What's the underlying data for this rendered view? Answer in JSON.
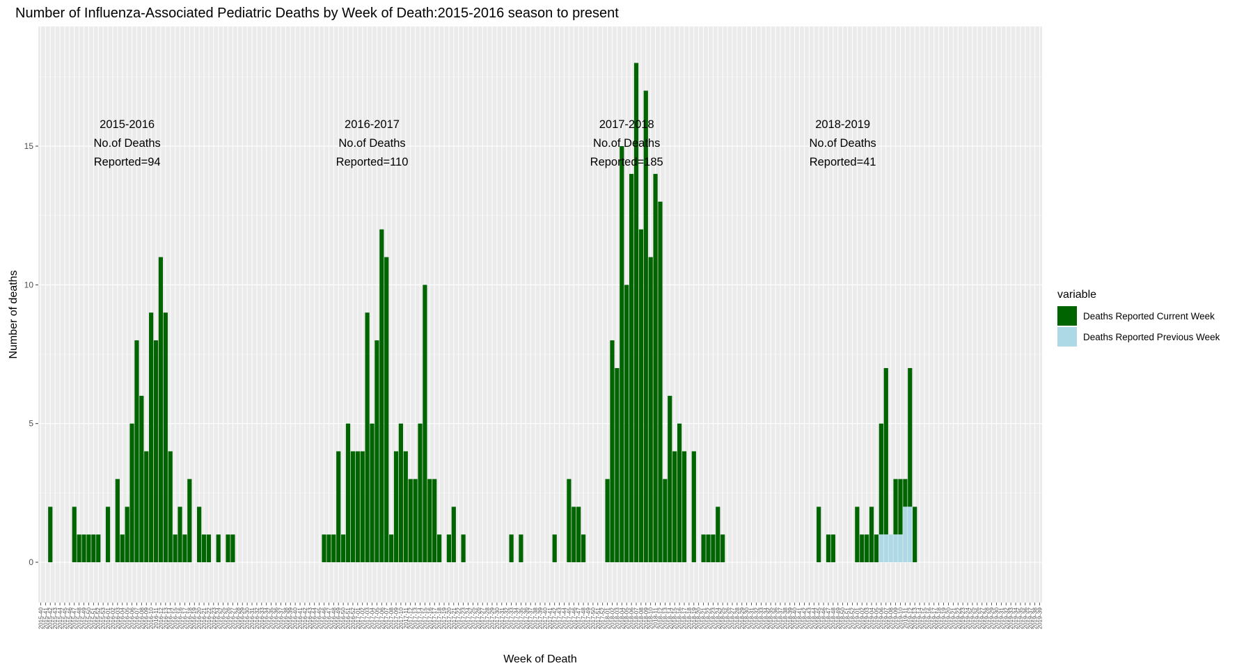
{
  "chart_data": {
    "type": "bar",
    "title": "Number of Influenza-Associated Pediatric Deaths by Week of Death:2015-2016 season to present",
    "xlabel": "Week of Death",
    "ylabel": "Number of deaths",
    "ylim": [
      0,
      18.9
    ],
    "yticks": [
      0,
      5,
      10,
      15
    ],
    "stacked": true,
    "grid": true,
    "legend": {
      "title": "variable",
      "position": "right"
    },
    "series": [
      {
        "name": "Deaths Reported Current Week",
        "color": "#006400"
      },
      {
        "name": "Deaths Reported Previous Week",
        "color": "#add8e6"
      }
    ],
    "categories": [
      "2015-40",
      "2015-41",
      "2015-42",
      "2015-43",
      "2015-44",
      "2015-45",
      "2015-46",
      "2015-47",
      "2015-48",
      "2015-49",
      "2015-50",
      "2015-51",
      "2015-52",
      "2015-53",
      "2016-01",
      "2016-02",
      "2016-03",
      "2016-04",
      "2016-05",
      "2016-06",
      "2016-07",
      "2016-08",
      "2016-09",
      "2016-10",
      "2016-11",
      "2016-12",
      "2016-13",
      "2016-14",
      "2016-15",
      "2016-16",
      "2016-17",
      "2016-18",
      "2016-19",
      "2016-20",
      "2016-21",
      "2016-22",
      "2016-23",
      "2016-24",
      "2016-25",
      "2016-26",
      "2016-27",
      "2016-28",
      "2016-29",
      "2016-30",
      "2016-31",
      "2016-32",
      "2016-33",
      "2016-34",
      "2016-35",
      "2016-36",
      "2016-37",
      "2016-38",
      "2016-39",
      "2016-40",
      "2016-41",
      "2016-42",
      "2016-43",
      "2016-44",
      "2016-45",
      "2016-46",
      "2016-47",
      "2016-48",
      "2016-49",
      "2016-50",
      "2016-51",
      "2016-52",
      "2017-01",
      "2017-02",
      "2017-03",
      "2017-04",
      "2017-05",
      "2017-06",
      "2017-07",
      "2017-08",
      "2017-09",
      "2017-10",
      "2017-11",
      "2017-12",
      "2017-13",
      "2017-14",
      "2017-15",
      "2017-16",
      "2017-17",
      "2017-18",
      "2017-19",
      "2017-20",
      "2017-21",
      "2017-22",
      "2017-23",
      "2017-24",
      "2017-25",
      "2017-26",
      "2017-27",
      "2017-28",
      "2017-29",
      "2017-30",
      "2017-31",
      "2017-32",
      "2017-33",
      "2017-34",
      "2017-35",
      "2017-36",
      "2017-37",
      "2017-38",
      "2017-39",
      "2017-40",
      "2017-41",
      "2017-42",
      "2017-43",
      "2017-44",
      "2017-45",
      "2017-46",
      "2017-47",
      "2017-48",
      "2017-49",
      "2017-50",
      "2017-51",
      "2017-52",
      "2018-01",
      "2018-02",
      "2018-03",
      "2018-04",
      "2018-05",
      "2018-06",
      "2018-07",
      "2018-08",
      "2018-09",
      "2018-10",
      "2018-11",
      "2018-12",
      "2018-13",
      "2018-14",
      "2018-15",
      "2018-16",
      "2018-17",
      "2018-18",
      "2018-19",
      "2018-20",
      "2018-21",
      "2018-22",
      "2018-23",
      "2018-24",
      "2018-25",
      "2018-26",
      "2018-27",
      "2018-28",
      "2018-29",
      "2018-30",
      "2018-31",
      "2018-32",
      "2018-33",
      "2018-34",
      "2018-35",
      "2018-36",
      "2018-37",
      "2018-38",
      "2018-39",
      "2018-40",
      "2018-41",
      "2018-42",
      "2018-43",
      "2018-44",
      "2018-45",
      "2018-46",
      "2018-47",
      "2018-48",
      "2018-49",
      "2018-50",
      "2018-51",
      "2018-52",
      "2019-01",
      "2019-02",
      "2019-03",
      "2019-04",
      "2019-05",
      "2019-06",
      "2019-07",
      "2019-08",
      "2019-09",
      "2019-10",
      "2019-11",
      "2019-12",
      "2019-13",
      "2019-14",
      "2019-15",
      "2019-16",
      "2019-17",
      "2019-18",
      "2019-19",
      "2019-20",
      "2019-21",
      "2019-22",
      "2019-23",
      "2019-24",
      "2019-25",
      "2019-26",
      "2019-27",
      "2019-28",
      "2019-29",
      "2019-30",
      "2019-31",
      "2019-32",
      "2019-33",
      "2019-34",
      "2019-35",
      "2019-36",
      "2019-37",
      "2019-38",
      "2019-39"
    ],
    "current_week": [
      0,
      0,
      2,
      0,
      0,
      0,
      0,
      2,
      1,
      1,
      1,
      1,
      1,
      0,
      2,
      0,
      3,
      1,
      2,
      5,
      8,
      6,
      4,
      9,
      8,
      11,
      9,
      4,
      1,
      2,
      1,
      3,
      0,
      2,
      1,
      1,
      0,
      1,
      0,
      1,
      1,
      0,
      0,
      0,
      0,
      0,
      0,
      0,
      0,
      0,
      0,
      0,
      0,
      0,
      0,
      0,
      0,
      0,
      0,
      1,
      1,
      1,
      4,
      1,
      5,
      4,
      4,
      4,
      9,
      5,
      8,
      12,
      11,
      1,
      4,
      5,
      4,
      3,
      3,
      5,
      10,
      3,
      3,
      1,
      0,
      1,
      2,
      0,
      1,
      0,
      0,
      0,
      0,
      0,
      0,
      0,
      0,
      0,
      1,
      0,
      1,
      0,
      0,
      0,
      0,
      0,
      0,
      1,
      0,
      0,
      3,
      2,
      2,
      1,
      0,
      0,
      0,
      0,
      3,
      8,
      7,
      15,
      10,
      14,
      18,
      12,
      17,
      11,
      14,
      13,
      3,
      6,
      4,
      5,
      4,
      0,
      4,
      0,
      1,
      1,
      1,
      2,
      1,
      0,
      0,
      0,
      0,
      0,
      0,
      0,
      0,
      0,
      0,
      0,
      0,
      0,
      0,
      0,
      0,
      0,
      0,
      0,
      2,
      0,
      1,
      1,
      0,
      0,
      0,
      0,
      2,
      1,
      1,
      2,
      1,
      4,
      6,
      0,
      2,
      2,
      1,
      5,
      2,
      0,
      0,
      0,
      0,
      0,
      0,
      0,
      0,
      0,
      0,
      0,
      0,
      0,
      0,
      0,
      0,
      0,
      0,
      0,
      0,
      0,
      0,
      0,
      0,
      0,
      0
    ],
    "previous_week": [
      0,
      0,
      0,
      0,
      0,
      0,
      0,
      0,
      0,
      0,
      0,
      0,
      0,
      0,
      0,
      0,
      0,
      0,
      0,
      0,
      0,
      0,
      0,
      0,
      0,
      0,
      0,
      0,
      0,
      0,
      0,
      0,
      0,
      0,
      0,
      0,
      0,
      0,
      0,
      0,
      0,
      0,
      0,
      0,
      0,
      0,
      0,
      0,
      0,
      0,
      0,
      0,
      0,
      0,
      0,
      0,
      0,
      0,
      0,
      0,
      0,
      0,
      0,
      0,
      0,
      0,
      0,
      0,
      0,
      0,
      0,
      0,
      0,
      0,
      0,
      0,
      0,
      0,
      0,
      0,
      0,
      0,
      0,
      0,
      0,
      0,
      0,
      0,
      0,
      0,
      0,
      0,
      0,
      0,
      0,
      0,
      0,
      0,
      0,
      0,
      0,
      0,
      0,
      0,
      0,
      0,
      0,
      0,
      0,
      0,
      0,
      0,
      0,
      0,
      0,
      0,
      0,
      0,
      0,
      0,
      0,
      0,
      0,
      0,
      0,
      0,
      0,
      0,
      0,
      0,
      0,
      0,
      0,
      0,
      0,
      0,
      0,
      0,
      0,
      0,
      0,
      0,
      0,
      0,
      0,
      0,
      0,
      0,
      0,
      0,
      0,
      0,
      0,
      0,
      0,
      0,
      0,
      0,
      0,
      0,
      0,
      0,
      0,
      0,
      0,
      0,
      0,
      0,
      0,
      0,
      0,
      0,
      0,
      0,
      0,
      1,
      1,
      1,
      1,
      1,
      2,
      2,
      0,
      0,
      0,
      0,
      0,
      0,
      0,
      0,
      0,
      0,
      0,
      0,
      0,
      0,
      0,
      0,
      0,
      0,
      0,
      0,
      0,
      0,
      0,
      0,
      0,
      0,
      0
    ],
    "annotations": [
      {
        "lines": [
          "2015-2016",
          "No.of Deaths",
          "Reported=94"
        ],
        "x": "2016-05"
      },
      {
        "lines": [
          "2016-2017",
          "No.of Deaths",
          "Reported=110"
        ],
        "x": "2017-04"
      },
      {
        "lines": [
          "2017-2018",
          "No.of Deaths",
          "Reported=185"
        ],
        "x": "2018-05"
      },
      {
        "lines": [
          "2018-2019",
          "No.of Deaths",
          "Reported=41"
        ],
        "x": "2018-50"
      }
    ]
  }
}
